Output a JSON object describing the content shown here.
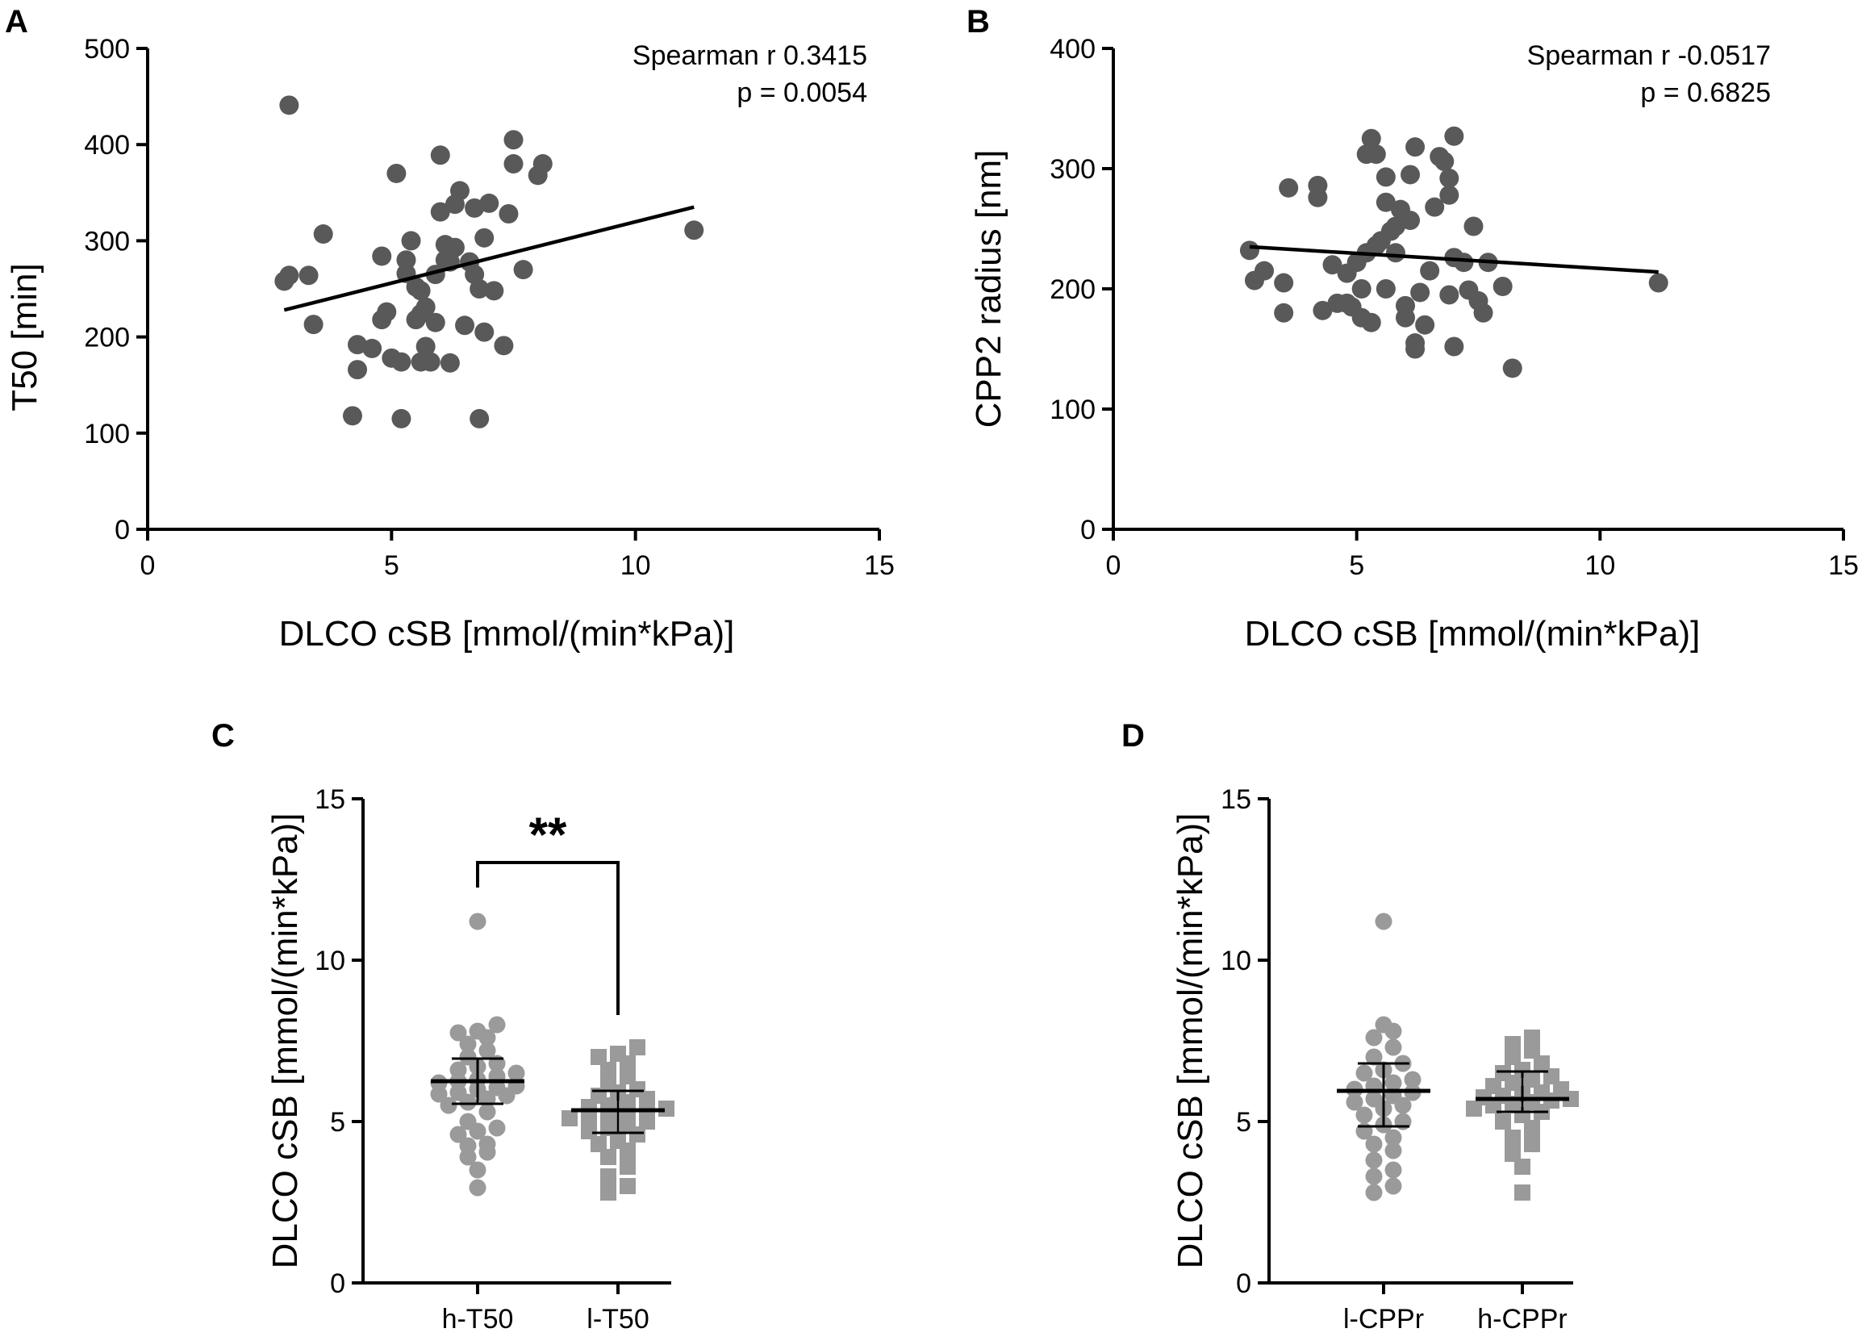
{
  "figure": {
    "colors": {
      "point_dark": "#595959",
      "point_light": "#9a9a9a",
      "axis": "#000000"
    }
  },
  "chart_data": [
    {
      "id": "A",
      "type": "scatter",
      "panel_label": "A",
      "xlabel": "DLCO cSB [mmol/(min*kPa)]",
      "ylabel": "T50 [min]",
      "xlim": [
        0,
        15
      ],
      "ylim": [
        0,
        500
      ],
      "xticks": [
        "0",
        "5",
        "10",
        "15"
      ],
      "yticks": [
        "0",
        "100",
        "200",
        "300",
        "400",
        "500"
      ],
      "annotation": [
        "Spearman r 0.3415",
        "p = 0.0054"
      ],
      "fit_line": {
        "x1": 2.8,
        "y1": 228,
        "x2": 11.2,
        "y2": 335
      },
      "points": [
        [
          2.9,
          441
        ],
        [
          2.8,
          258
        ],
        [
          2.9,
          264
        ],
        [
          3.3,
          264
        ],
        [
          3.6,
          307
        ],
        [
          3.4,
          213
        ],
        [
          4.3,
          192
        ],
        [
          4.3,
          166
        ],
        [
          4.2,
          118
        ],
        [
          4.6,
          188
        ],
        [
          4.8,
          218
        ],
        [
          4.9,
          226
        ],
        [
          4.8,
          284
        ],
        [
          5.0,
          178
        ],
        [
          5.2,
          174
        ],
        [
          5.2,
          115
        ],
        [
          5.1,
          370
        ],
        [
          5.3,
          280
        ],
        [
          5.3,
          266
        ],
        [
          5.4,
          300
        ],
        [
          5.5,
          252
        ],
        [
          5.5,
          218
        ],
        [
          5.6,
          224
        ],
        [
          5.6,
          248
        ],
        [
          5.7,
          231
        ],
        [
          5.6,
          174
        ],
        [
          5.7,
          190
        ],
        [
          5.8,
          174
        ],
        [
          5.9,
          215
        ],
        [
          5.9,
          265
        ],
        [
          6.0,
          389
        ],
        [
          6.0,
          330
        ],
        [
          6.1,
          296
        ],
        [
          6.1,
          280
        ],
        [
          6.2,
          278
        ],
        [
          6.2,
          173
        ],
        [
          6.3,
          293
        ],
        [
          6.3,
          338
        ],
        [
          6.4,
          352
        ],
        [
          6.5,
          212
        ],
        [
          6.6,
          278
        ],
        [
          6.7,
          265
        ],
        [
          6.7,
          334
        ],
        [
          6.8,
          250
        ],
        [
          6.8,
          115
        ],
        [
          6.9,
          303
        ],
        [
          6.9,
          205
        ],
        [
          7.1,
          248
        ],
        [
          7.0,
          339
        ],
        [
          7.3,
          191
        ],
        [
          7.4,
          328
        ],
        [
          7.5,
          405
        ],
        [
          7.5,
          380
        ],
        [
          7.7,
          270
        ],
        [
          8.0,
          368
        ],
        [
          8.1,
          380
        ],
        [
          11.2,
          311
        ]
      ]
    },
    {
      "id": "B",
      "type": "scatter",
      "panel_label": "B",
      "xlabel": "DLCO cSB [mmol/(min*kPa)]",
      "ylabel": "CPP2 radius [nm]",
      "xlim": [
        0,
        15
      ],
      "ylim": [
        0,
        400
      ],
      "xticks": [
        "0",
        "5",
        "10",
        "15"
      ],
      "yticks": [
        "0",
        "100",
        "200",
        "300",
        "400"
      ],
      "annotation": [
        "Spearman r -0.0517",
        "p = 0.6825"
      ],
      "fit_line": {
        "x1": 2.8,
        "y1": 235,
        "x2": 11.2,
        "y2": 214
      },
      "points": [
        [
          2.8,
          232
        ],
        [
          2.9,
          207
        ],
        [
          3.1,
          215
        ],
        [
          3.5,
          205
        ],
        [
          3.5,
          180
        ],
        [
          3.6,
          284
        ],
        [
          4.2,
          286
        ],
        [
          4.2,
          276
        ],
        [
          4.3,
          182
        ],
        [
          4.5,
          220
        ],
        [
          4.6,
          188
        ],
        [
          4.8,
          213
        ],
        [
          4.8,
          188
        ],
        [
          4.9,
          185
        ],
        [
          5.0,
          222
        ],
        [
          5.1,
          200
        ],
        [
          5.1,
          176
        ],
        [
          5.2,
          230
        ],
        [
          5.2,
          312
        ],
        [
          5.3,
          172
        ],
        [
          5.3,
          325
        ],
        [
          5.4,
          312
        ],
        [
          5.4,
          236
        ],
        [
          5.5,
          240
        ],
        [
          5.6,
          293
        ],
        [
          5.6,
          200
        ],
        [
          5.6,
          272
        ],
        [
          5.7,
          248
        ],
        [
          5.8,
          252
        ],
        [
          5.8,
          230
        ],
        [
          5.9,
          266
        ],
        [
          6.0,
          176
        ],
        [
          6.0,
          186
        ],
        [
          6.1,
          295
        ],
        [
          6.1,
          257
        ],
        [
          6.2,
          318
        ],
        [
          6.2,
          155
        ],
        [
          6.2,
          150
        ],
        [
          6.3,
          197
        ],
        [
          6.4,
          170
        ],
        [
          6.5,
          215
        ],
        [
          6.6,
          268
        ],
        [
          6.7,
          310
        ],
        [
          6.8,
          306
        ],
        [
          6.9,
          292
        ],
        [
          6.9,
          195
        ],
        [
          6.9,
          278
        ],
        [
          7.0,
          152
        ],
        [
          7.0,
          226
        ],
        [
          7.0,
          327
        ],
        [
          7.2,
          222
        ],
        [
          7.3,
          199
        ],
        [
          7.4,
          252
        ],
        [
          7.5,
          190
        ],
        [
          7.6,
          180
        ],
        [
          7.7,
          222
        ],
        [
          8.0,
          202
        ],
        [
          8.2,
          134
        ],
        [
          11.2,
          205
        ]
      ]
    },
    {
      "id": "C",
      "type": "strip",
      "panel_label": "C",
      "ylabel": "DLCO cSB [mmol/(min*kPa)]",
      "ylim": [
        0,
        15
      ],
      "yticks": [
        "0",
        "5",
        "10",
        "15"
      ],
      "significance": "**",
      "groups": [
        {
          "label": "h-T50",
          "marker": "circle",
          "mean": 6.25,
          "sd_low": 5.55,
          "sd_high": 6.95,
          "values": [
            2.95,
            3.5,
            3.9,
            4.05,
            4.25,
            4.3,
            4.6,
            4.7,
            4.8,
            5.0,
            5.3,
            5.5,
            5.6,
            5.7,
            5.8,
            5.85,
            5.9,
            6.0,
            6.05,
            6.1,
            6.2,
            6.25,
            6.3,
            6.4,
            6.5,
            6.6,
            6.7,
            6.8,
            7.0,
            7.2,
            7.4,
            7.6,
            7.75,
            7.8,
            8.0,
            11.2
          ]
        },
        {
          "label": "l-T50",
          "marker": "square",
          "mean": 5.35,
          "sd_low": 4.65,
          "sd_high": 5.95,
          "values": [
            2.8,
            3.0,
            3.3,
            3.6,
            3.9,
            4.1,
            4.3,
            4.4,
            4.6,
            4.7,
            4.8,
            4.9,
            5.0,
            5.1,
            5.2,
            5.25,
            5.3,
            5.35,
            5.4,
            5.45,
            5.5,
            5.6,
            5.7,
            5.8,
            5.9,
            6.0,
            6.2,
            6.4,
            6.6,
            6.8,
            7.0,
            7.1,
            7.3
          ]
        }
      ]
    },
    {
      "id": "D",
      "type": "strip",
      "panel_label": "D",
      "ylabel": "DLCO cSB [mmol/(min*kPa)]",
      "ylim": [
        0,
        15
      ],
      "yticks": [
        "0",
        "5",
        "10",
        "15"
      ],
      "groups": [
        {
          "label": "l-CPPr",
          "marker": "circle",
          "mean": 5.95,
          "sd_low": 4.85,
          "sd_high": 6.8,
          "values": [
            2.8,
            3.0,
            3.3,
            3.5,
            3.8,
            4.1,
            4.3,
            4.5,
            4.7,
            4.9,
            5.0,
            5.2,
            5.4,
            5.5,
            5.6,
            5.7,
            5.8,
            5.9,
            6.0,
            6.1,
            6.2,
            6.3,
            6.5,
            6.6,
            6.8,
            7.0,
            7.3,
            7.6,
            7.8,
            8.0,
            11.2
          ]
        },
        {
          "label": "h-CPPr",
          "marker": "square",
          "mean": 5.7,
          "sd_low": 5.3,
          "sd_high": 6.55,
          "values": [
            2.8,
            3.6,
            4.0,
            4.3,
            4.5,
            4.8,
            5.0,
            5.2,
            5.3,
            5.4,
            5.5,
            5.55,
            5.6,
            5.65,
            5.7,
            5.75,
            5.8,
            5.85,
            5.9,
            6.0,
            6.1,
            6.2,
            6.3,
            6.4,
            6.5,
            6.6,
            6.8,
            7.0,
            7.2,
            7.4,
            7.6
          ]
        }
      ]
    }
  ]
}
